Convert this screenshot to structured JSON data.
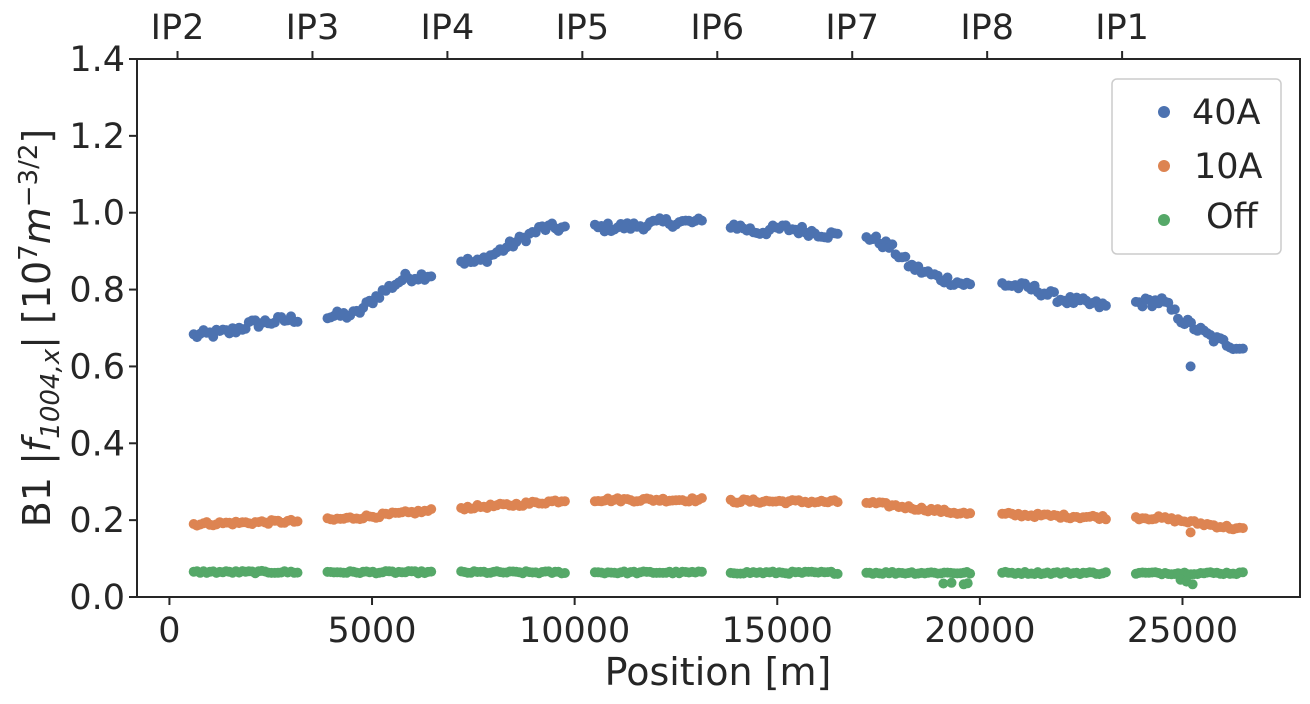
{
  "chart_data": {
    "type": "scatter",
    "xlabel": "Position [m]",
    "ylabel": {
      "prefix": "B1 |",
      "f": "f",
      "f_sub": "1004,x",
      "bar": "|",
      "bracket_open": " [10",
      "exp7": "7",
      "m": "m",
      "exp_m": "−3/2",
      "bracket_close": "]"
    },
    "xlim": [
      -800,
      27900
    ],
    "ylim": [
      0,
      1.4
    ],
    "xticks": [
      0,
      5000,
      10000,
      15000,
      20000,
      25000
    ],
    "xtick_labels": [
      "0",
      "5000",
      "10000",
      "15000",
      "20000",
      "25000"
    ],
    "yticks": [
      0,
      0.2,
      0.4,
      0.6,
      0.8,
      1.0,
      1.2,
      1.4
    ],
    "ytick_labels": [
      "0.0",
      "0.2",
      "0.4",
      "0.6",
      "0.8",
      "1.0",
      "1.2",
      "1.4"
    ],
    "top_axis": {
      "positions": [
        200,
        3530,
        6860,
        10190,
        13520,
        16850,
        20180,
        23510
      ],
      "labels": [
        "IP2",
        "IP3",
        "IP4",
        "IP5",
        "IP6",
        "IP7",
        "IP8",
        "IP1"
      ]
    },
    "grid": false,
    "legend_position": "top-right",
    "segments": [
      [
        600,
        3200
      ],
      [
        3900,
        6500
      ],
      [
        7200,
        9800
      ],
      [
        10500,
        13150
      ],
      [
        13850,
        16500
      ],
      [
        17200,
        19800
      ],
      [
        20550,
        23150
      ],
      [
        23850,
        26550
      ]
    ],
    "series": [
      {
        "name": "40A",
        "color": "#4c72b0",
        "profile": [
          [
            600,
            0.68
          ],
          [
            1500,
            0.69
          ],
          [
            2000,
            0.71
          ],
          [
            3200,
            0.725
          ],
          [
            3900,
            0.73
          ],
          [
            4600,
            0.735
          ],
          [
            5200,
            0.79
          ],
          [
            5800,
            0.83
          ],
          [
            6500,
            0.84
          ],
          [
            7200,
            0.875
          ],
          [
            7600,
            0.87
          ],
          [
            8500,
            0.92
          ],
          [
            9200,
            0.96
          ],
          [
            9800,
            0.96
          ],
          [
            10500,
            0.96
          ],
          [
            11500,
            0.965
          ],
          [
            12200,
            0.975
          ],
          [
            13150,
            0.975
          ],
          [
            13850,
            0.97
          ],
          [
            14500,
            0.95
          ],
          [
            15200,
            0.96
          ],
          [
            16500,
            0.94
          ],
          [
            17200,
            0.94
          ],
          [
            17800,
            0.91
          ],
          [
            18300,
            0.86
          ],
          [
            19000,
            0.83
          ],
          [
            19800,
            0.81
          ],
          [
            20550,
            0.815
          ],
          [
            21400,
            0.8
          ],
          [
            22000,
            0.775
          ],
          [
            23150,
            0.755
          ],
          [
            23850,
            0.765
          ],
          [
            24500,
            0.77
          ],
          [
            25000,
            0.72
          ],
          [
            25800,
            0.67
          ],
          [
            26550,
            0.645
          ]
        ],
        "noise": 0.012,
        "outliers": [
          [
            25200,
            0.6
          ]
        ]
      },
      {
        "name": "10A",
        "color": "#dd8452",
        "profile": [
          [
            600,
            0.19
          ],
          [
            3200,
            0.197
          ],
          [
            3900,
            0.2
          ],
          [
            5000,
            0.21
          ],
          [
            6500,
            0.225
          ],
          [
            7200,
            0.232
          ],
          [
            8500,
            0.24
          ],
          [
            9800,
            0.252
          ],
          [
            10500,
            0.253
          ],
          [
            13150,
            0.253
          ],
          [
            13850,
            0.25
          ],
          [
            16500,
            0.247
          ],
          [
            17200,
            0.246
          ],
          [
            18000,
            0.236
          ],
          [
            19800,
            0.215
          ],
          [
            20550,
            0.215
          ],
          [
            23150,
            0.207
          ],
          [
            23850,
            0.207
          ],
          [
            24500,
            0.205
          ],
          [
            26550,
            0.175
          ]
        ],
        "noise": 0.005,
        "outliers": [
          [
            25200,
            0.168
          ]
        ]
      },
      {
        "name": "Off",
        "color": "#55a868",
        "profile": [
          [
            600,
            0.065
          ],
          [
            26550,
            0.062
          ]
        ],
        "noise": 0.003,
        "outliers": [
          [
            19100,
            0.035
          ],
          [
            19300,
            0.037
          ],
          [
            19600,
            0.033
          ],
          [
            19700,
            0.036
          ],
          [
            24950,
            0.045
          ],
          [
            25100,
            0.04
          ],
          [
            25250,
            0.033
          ]
        ]
      }
    ]
  }
}
